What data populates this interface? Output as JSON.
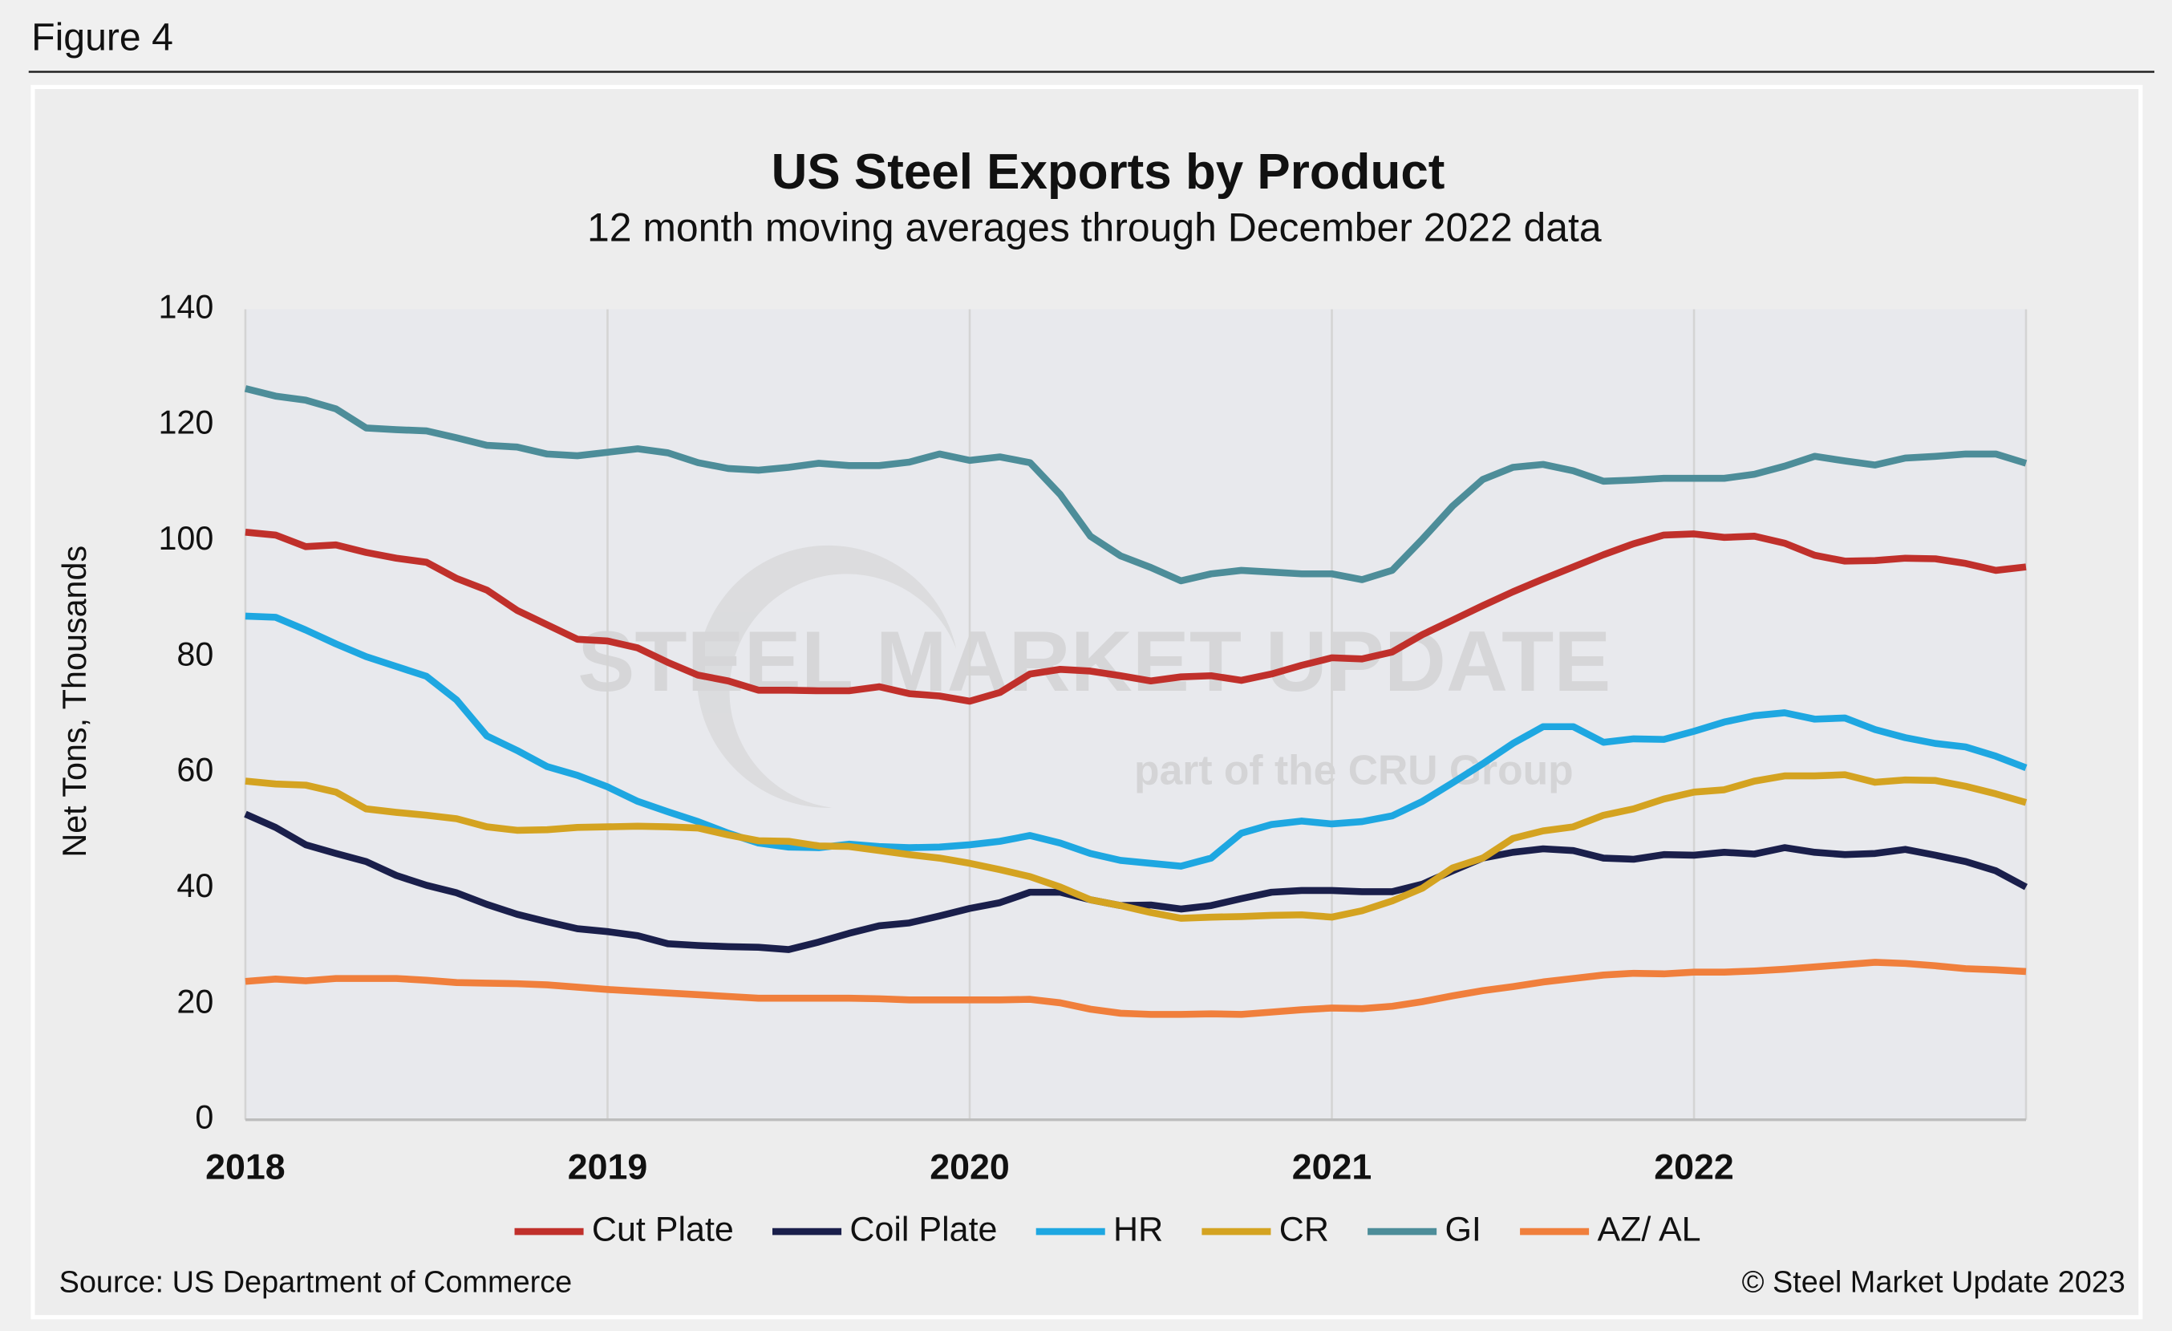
{
  "figure_label": "Figure 4",
  "source": "Source: US Department of Commerce",
  "copyright": "© Steel Market Update 2023",
  "watermark": {
    "brand": "STEEL MARKET UPDATE",
    "tagline": "part of the CRU Group"
  },
  "chart_data": {
    "type": "line",
    "title": "US Steel Exports by Product",
    "subtitle": "12 month moving averages through December 2022 data",
    "y_label": "Net Tons, Thousands",
    "categories": [
      "2018",
      null,
      null,
      null,
      null,
      null,
      null,
      null,
      null,
      null,
      null,
      null,
      "2019",
      null,
      null,
      null,
      null,
      null,
      null,
      null,
      null,
      null,
      null,
      null,
      "2020",
      null,
      null,
      null,
      null,
      null,
      null,
      null,
      null,
      null,
      null,
      null,
      "2021",
      null,
      null,
      null,
      null,
      null,
      null,
      null,
      null,
      null,
      null,
      null,
      "2022",
      null,
      null,
      null,
      null,
      null,
      null,
      null,
      null,
      null,
      null,
      null
    ],
    "ylim": [
      0,
      140
    ],
    "yticks": [
      0,
      20,
      40,
      60,
      80,
      100,
      120,
      140
    ],
    "grid": "x",
    "legend": "bottom",
    "series": [
      {
        "name": "Cut Plate",
        "color": "#c0302b",
        "values": [
          101.5,
          101,
          99,
          99.3,
          98,
          97,
          96.3,
          93.5,
          91.5,
          88,
          85.5,
          83,
          82.7,
          81.5,
          79,
          76.8,
          75.8,
          74.2,
          74.2,
          74.1,
          74.1,
          74.8,
          73.6,
          73.2,
          72.3,
          73.8,
          77,
          77.8,
          77.5,
          76.7,
          75.8,
          76.5,
          76.7,
          75.9,
          77,
          78.5,
          79.8,
          79.6,
          80.8,
          83.8,
          86.3,
          88.8,
          91.2,
          93.4,
          95.5,
          97.6,
          99.5,
          101,
          101.2,
          100.6,
          100.8,
          99.6,
          97.5,
          96.5,
          96.6,
          97,
          96.9,
          96.1,
          94.9,
          95.5
        ]
      },
      {
        "name": "Coil Plate",
        "color": "#1a1f4b",
        "values": [
          52.8,
          50.5,
          47.5,
          46,
          44.6,
          42.2,
          40.5,
          39.2,
          37.2,
          35.5,
          34.2,
          33,
          32.5,
          31.8,
          30.4,
          30.1,
          29.9,
          29.8,
          29.4,
          30.7,
          32.2,
          33.5,
          34,
          35.2,
          36.5,
          37.5,
          39.3,
          39.3,
          38,
          37,
          37.1,
          36.4,
          37,
          38.2,
          39.3,
          39.6,
          39.6,
          39.4,
          39.4,
          40.7,
          43,
          45.2,
          46.2,
          46.8,
          46.5,
          45.2,
          45,
          45.8,
          45.7,
          46.2,
          45.9,
          47,
          46.2,
          45.8,
          46,
          46.7,
          45.7,
          44.6,
          43,
          40.2
        ]
      },
      {
        "name": "HR",
        "color": "#1ea7e1",
        "values": [
          87,
          86.8,
          84.6,
          82.2,
          80,
          78.3,
          76.6,
          72.5,
          66.3,
          63.8,
          61,
          59.5,
          57.5,
          55,
          53.2,
          51.5,
          49.5,
          47.8,
          47.1,
          47,
          47.6,
          47.2,
          47,
          47.1,
          47.5,
          48.1,
          49.1,
          47.8,
          46,
          44.8,
          44.3,
          43.8,
          45.2,
          49.5,
          51,
          51.6,
          51.1,
          51.5,
          52.5,
          55,
          58.2,
          61.5,
          65,
          67.9,
          67.9,
          65.2,
          65.8,
          65.7,
          67.1,
          68.7,
          69.8,
          70.3,
          69.2,
          69.4,
          67.4,
          66,
          65,
          64.4,
          62.8,
          60.8
        ]
      },
      {
        "name": "CR",
        "color": "#d4a321",
        "values": [
          58.5,
          58,
          57.8,
          56.6,
          53.7,
          53.1,
          52.6,
          52,
          50.6,
          50,
          50.1,
          50.5,
          50.6,
          50.7,
          50.6,
          50.4,
          49.2,
          48.2,
          48.1,
          47.3,
          47.2,
          46.5,
          45.8,
          45.2,
          44.3,
          43.2,
          42,
          40.2,
          38,
          37,
          35.8,
          34.8,
          35,
          35.1,
          35.3,
          35.4,
          35,
          36.1,
          37.8,
          40,
          43.5,
          45.2,
          48.6,
          49.9,
          50.6,
          52.6,
          53.7,
          55.4,
          56.6,
          57,
          58.5,
          59.4,
          59.4,
          59.6,
          58.3,
          58.7,
          58.6,
          57.6,
          56.3,
          54.8
        ]
      },
      {
        "name": "GI",
        "color": "#4d8d99",
        "values": [
          126.3,
          125,
          124.3,
          122.8,
          119.5,
          119.2,
          119,
          117.8,
          116.5,
          116.2,
          115,
          114.7,
          115.3,
          115.9,
          115.2,
          113.5,
          112.5,
          112.2,
          112.7,
          113.4,
          113,
          113,
          113.6,
          115,
          113.9,
          114.5,
          113.5,
          108,
          100.8,
          97.4,
          95.4,
          93.1,
          94.3,
          94.9,
          94.6,
          94.3,
          94.3,
          93.3,
          94.9,
          100.3,
          106,
          110.6,
          112.7,
          113.2,
          112.1,
          110.3,
          110.5,
          110.8,
          110.8,
          110.8,
          111.5,
          112.9,
          114.6,
          113.8,
          113.1,
          114.3,
          114.6,
          115,
          115,
          113.4
        ]
      },
      {
        "name": "AZ/ AL",
        "color": "#f07f3c",
        "values": [
          23.9,
          24.3,
          24,
          24.4,
          24.4,
          24.4,
          24.1,
          23.7,
          23.6,
          23.5,
          23.3,
          22.9,
          22.5,
          22.2,
          21.9,
          21.6,
          21.3,
          21,
          21,
          21,
          21,
          20.9,
          20.7,
          20.7,
          20.7,
          20.7,
          20.8,
          20.2,
          19.1,
          18.4,
          18.2,
          18.2,
          18.3,
          18.2,
          18.6,
          19,
          19.3,
          19.2,
          19.6,
          20.4,
          21.4,
          22.3,
          23,
          23.8,
          24.4,
          25,
          25.3,
          25.2,
          25.5,
          25.5,
          25.7,
          26,
          26.4,
          26.8,
          27.2,
          27,
          26.6,
          26.1,
          25.9,
          25.6
        ]
      }
    ]
  }
}
